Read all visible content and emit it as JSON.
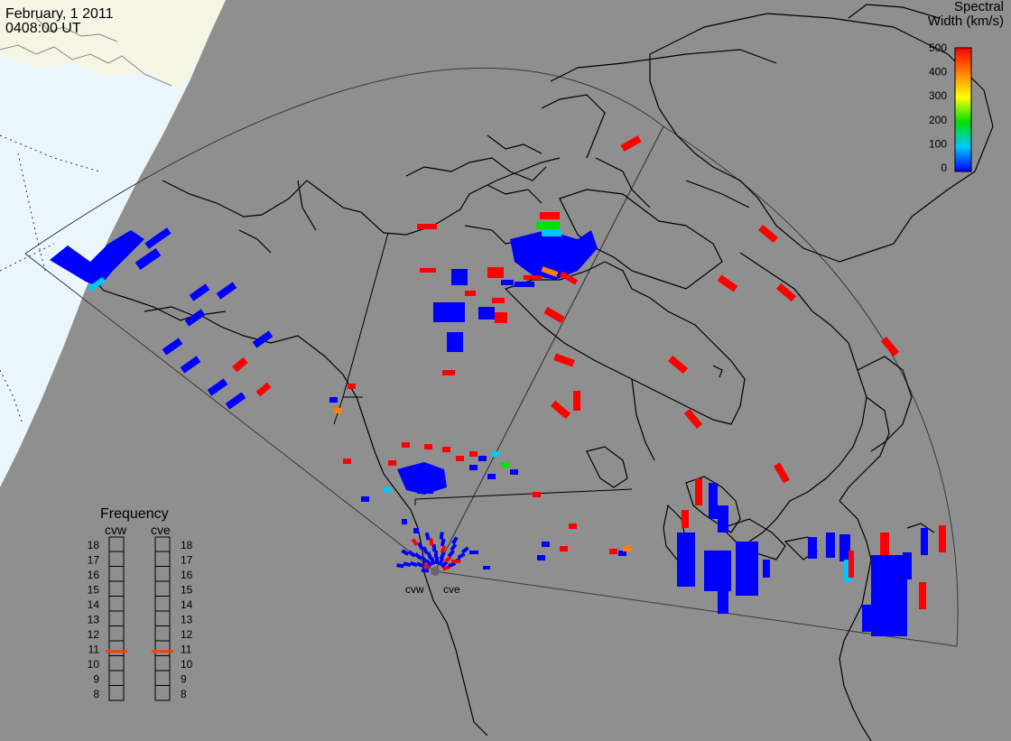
{
  "header": {
    "date": "February, 1 2011",
    "time": "0408:00 UT"
  },
  "scale": {
    "title_line1": "Spectral",
    "title_line2": "Width (km/s)",
    "ticks": [
      "500",
      "400",
      "300",
      "200",
      "100",
      "0"
    ],
    "colors": [
      "#ff0000",
      "#ff7f00",
      "#ffff00",
      "#00e000",
      "#00c8ff",
      "#0000ff"
    ]
  },
  "frequency": {
    "title": "Frequency",
    "radars": [
      {
        "name": "cvw",
        "freq_mhz": 10.8
      },
      {
        "name": "cve",
        "freq_mhz": 10.8
      }
    ],
    "ticks": [
      "18",
      "17",
      "16",
      "15",
      "14",
      "13",
      "12",
      "11",
      "10",
      "9",
      "8"
    ],
    "indicator_color": "#ff4000"
  },
  "sites": [
    {
      "name": "cvw"
    },
    {
      "name": "cve"
    }
  ],
  "colors": {
    "background": "#8f8f8f",
    "coast": "#000000",
    "fov": "#3a3a3a",
    "daylight": "#eaf6fc",
    "terminator": "#f6f6e6",
    "high": "#ff0000",
    "low": "#0000ff",
    "cyan": "#00c8ff",
    "green": "#00e000",
    "orange": "#ff7f00"
  }
}
